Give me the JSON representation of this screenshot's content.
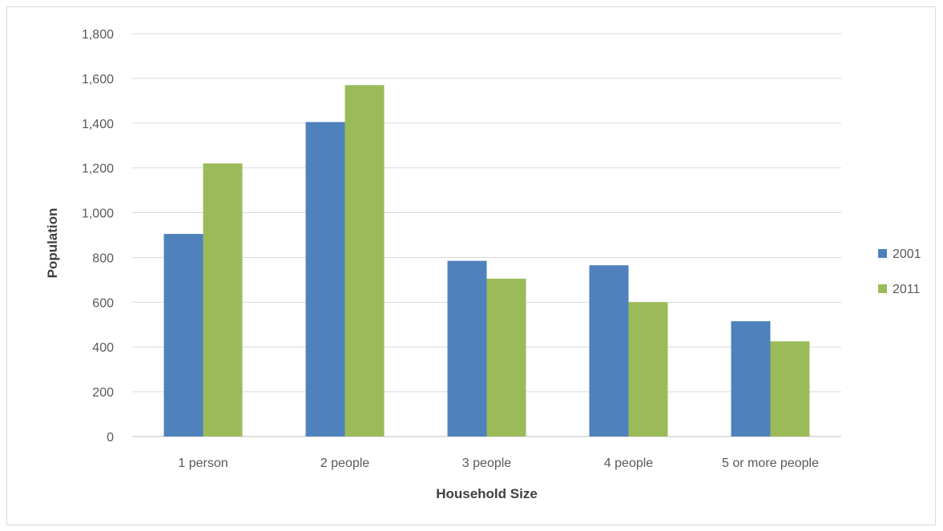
{
  "chart_data": {
    "type": "bar",
    "title": "",
    "xlabel": "Household Size",
    "ylabel": "Population",
    "categories": [
      "1 person",
      "2 people",
      "3 people",
      "4 people",
      "5 or more people"
    ],
    "series": [
      {
        "name": "2001",
        "color": "#4f81bd",
        "values": [
          905,
          1405,
          785,
          765,
          515
        ]
      },
      {
        "name": "2011",
        "color": "#9bbb59",
        "values": [
          1220,
          1570,
          705,
          600,
          425
        ]
      }
    ],
    "ylim": [
      0,
      1800
    ],
    "yticks": [
      0,
      200,
      400,
      600,
      800,
      1000,
      1200,
      1400,
      1600,
      1800
    ],
    "ytick_labels": [
      "0",
      "200",
      "400",
      "600",
      "800",
      "1,000",
      "1,200",
      "1,400",
      "1,600",
      "1,800"
    ],
    "grid": true,
    "legend_position": "right"
  }
}
